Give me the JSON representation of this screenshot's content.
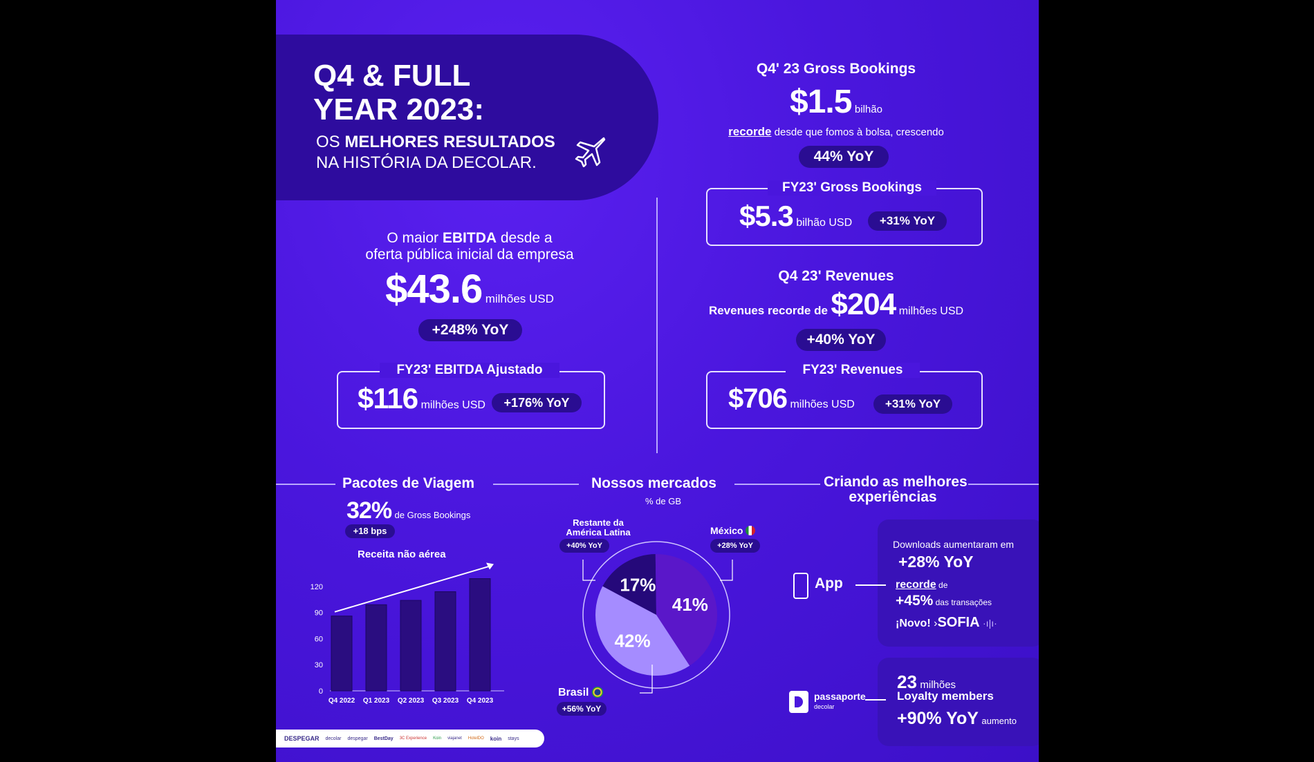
{
  "hero": {
    "title_line1": "Q4 & FULL",
    "title_line2": "YEAR 2023:",
    "subtitle_part1": "OS ",
    "subtitle_bold": "MELHORES RESULTADOS",
    "subtitle_line2": "NA HISTÓRIA DA DECOLAR."
  },
  "ebitda": {
    "intro_part1": "O maior ",
    "intro_bold": "EBITDA",
    "intro_part2": " desde a",
    "intro_line2": "oferta pública inicial da empresa",
    "value": "$43.6",
    "unit": "milhões USD",
    "yoy": "+248% YoY",
    "fy_title": "FY23' EBITDA Ajustado",
    "fy_value": "$116",
    "fy_unit": "milhões USD",
    "fy_yoy": "+176% YoY"
  },
  "gross_bookings": {
    "title": "Q4' 23 Gross Bookings",
    "value": "$1.5",
    "unit": "bilhão",
    "record_label": "recorde",
    "record_text": " desde que fomos à bolsa, crescendo",
    "yoy": "44% YoY",
    "fy_title": "FY23' Gross Bookings",
    "fy_value": "$5.3",
    "fy_unit": "bilhão USD",
    "fy_yoy": "+31% YoY"
  },
  "revenues": {
    "title": "Q4 23' Revenues",
    "prefix": "Revenues recorde de",
    "value": "$204",
    "unit": "milhões USD",
    "yoy": "+40% YoY",
    "fy_title": "FY23' Revenues",
    "fy_value": "$706",
    "fy_unit": "milhões USD",
    "fy_yoy": "+31% YoY"
  },
  "packages": {
    "title": "Pacotes de Viagem",
    "pct": "32%",
    "pct_label": "de Gross Bookings",
    "bps": "+18 bps",
    "chart_title": "Receita não aérea"
  },
  "markets": {
    "title": "Nossos mercados",
    "subtitle": "% de GB",
    "rest_label_line1": "Restante da",
    "rest_label_line2": "América Latina",
    "rest_yoy": "+40% YoY",
    "mexico_label": "México",
    "mexico_yoy": "+28% YoY",
    "brasil_label": "Brasil",
    "brasil_yoy": "+56% YoY"
  },
  "experiences": {
    "title_line1": "Criando as melhores",
    "title_line2": "experiências",
    "app_label": "App",
    "downloads_text": "Downloads aumentaram em",
    "downloads_yoy": "+28% YoY",
    "record_label": "recorde",
    "record_de": " de",
    "transactions_pct": "+45%",
    "transactions_label": " das transações",
    "novo": "¡Novo!",
    "sofia": "SOFIA",
    "passaporte_label": "passaporte",
    "passaporte_sub": "decolar",
    "members_value": "23",
    "members_unit": "milhões",
    "members_label": "Loyalty members",
    "members_yoy": "+90% YoY",
    "members_suffix": "aumento"
  },
  "brands": [
    "DESPEGAR",
    "decolar",
    "despegar",
    "BestDay",
    "3C Experience",
    "Koin",
    "viajanet",
    "HotelDO",
    "koin",
    "stays"
  ],
  "colors": {
    "bg": "#4a16dd",
    "pill": "#2a0d92",
    "bar": "#2a0d80",
    "slice_rest": "#a58cff",
    "slice_mexico": "#25097a",
    "slice_brasil": "#5a17c9"
  },
  "chart_data": [
    {
      "type": "bar",
      "title": "Receita não aérea",
      "categories": [
        "Q4 2022",
        "Q1 2023",
        "Q2 2023",
        "Q3 2023",
        "Q4 2023"
      ],
      "values": [
        86,
        99,
        104,
        114,
        129
      ],
      "ylim": [
        0,
        135
      ],
      "yticks": [
        0,
        30,
        60,
        90,
        120
      ],
      "trend_arrow": true,
      "grid": false
    },
    {
      "type": "pie",
      "title": "Nossos mercados",
      "subtitle": "% de GB",
      "labels": [
        "Restante da América Latina",
        "México",
        "Brasil"
      ],
      "values": [
        42,
        17,
        41
      ],
      "value_labels": [
        "42%",
        "17%",
        "41%"
      ]
    }
  ]
}
